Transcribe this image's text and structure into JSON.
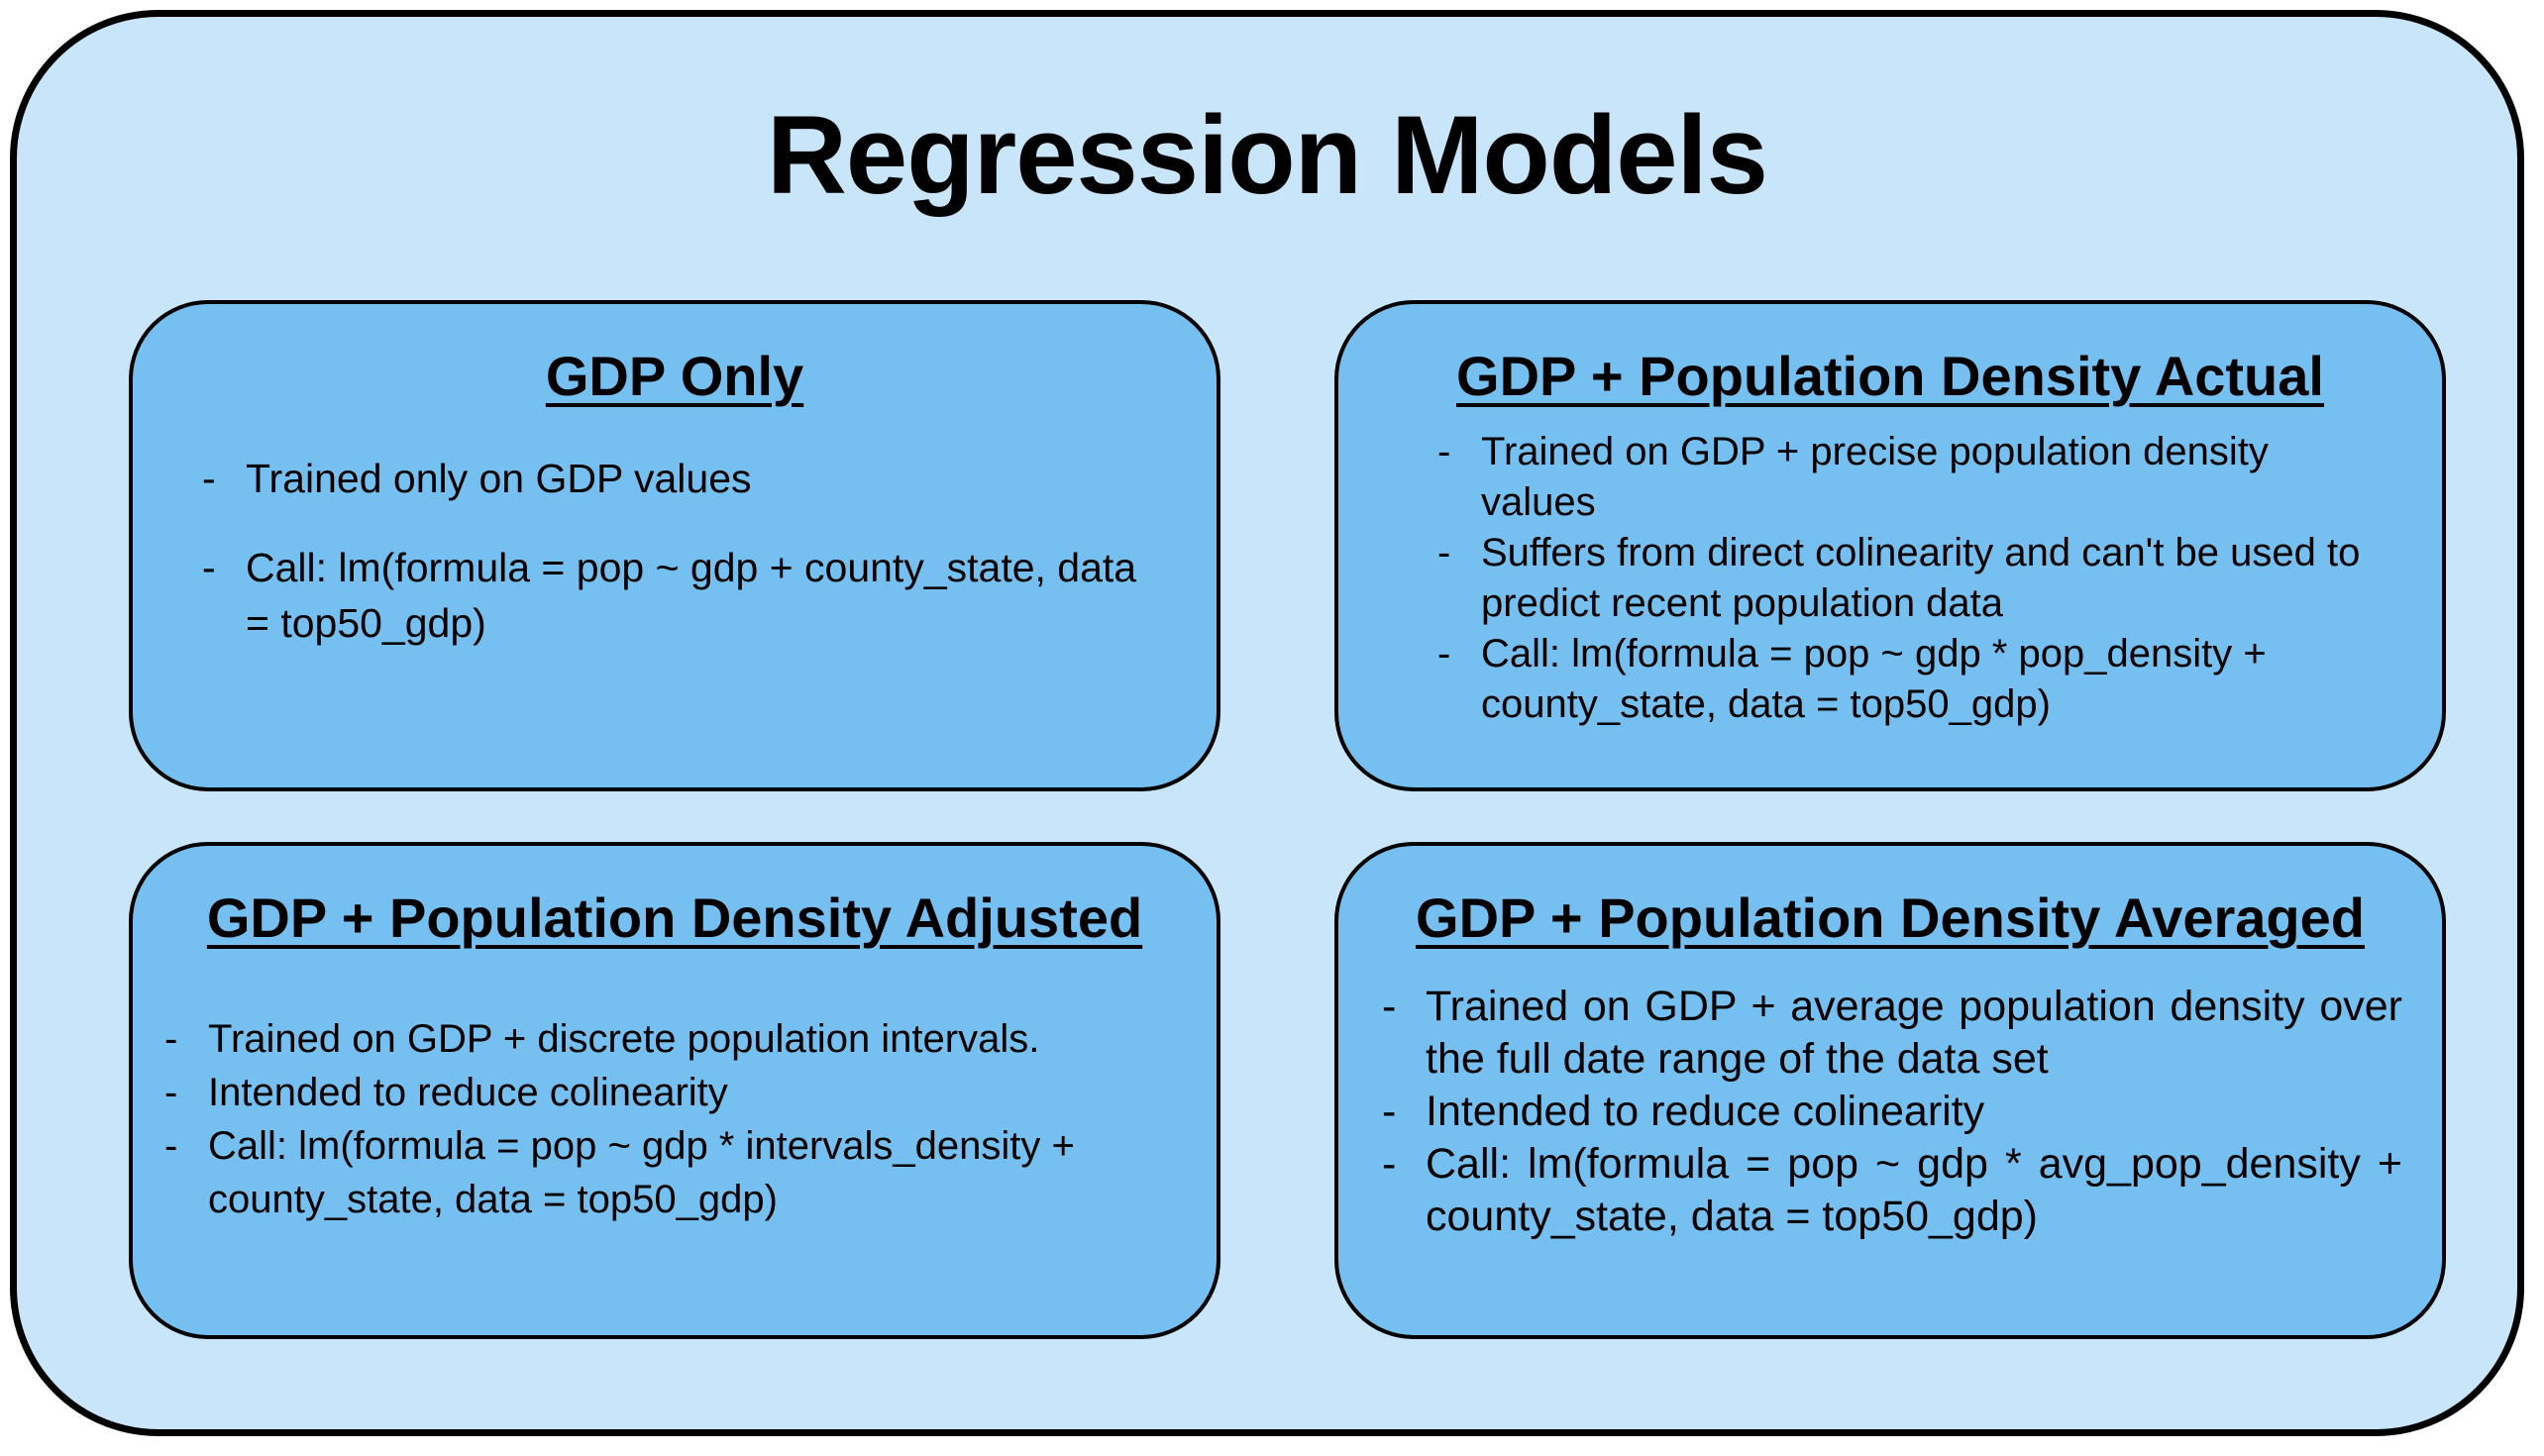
{
  "title": "Regression Models",
  "colors": {
    "outer_fill": "#c8e5fa",
    "card_fill": "#76c0f1",
    "border": "#000000"
  },
  "cards": [
    {
      "title": "GDP Only",
      "bullets": [
        "Trained only on GDP values",
        "Call: lm(formula = pop ~ gdp + county_state, data = top50_gdp)"
      ]
    },
    {
      "title": "GDP + Population Density Actual",
      "bullets": [
        "Trained on GDP + precise population density values",
        "Suffers from direct colinearity and can't be used to predict recent population data",
        "Call: lm(formula = pop ~ gdp * pop_density + county_state, data = top50_gdp)"
      ]
    },
    {
      "title": "GDP + Population Density Adjusted",
      "bullets": [
        "Trained on GDP + discrete population intervals.",
        "Intended to reduce colinearity",
        "Call: lm(formula = pop ~ gdp * intervals_density + county_state, data = top50_gdp)"
      ]
    },
    {
      "title": "GDP + Population Density Averaged",
      "bullets": [
        "Trained on GDP + average population density over the full date range of the data set",
        "Intended to reduce colinearity",
        "Call: lm(formula = pop ~ gdp * avg_pop_density + county_state, data = top50_gdp)"
      ]
    }
  ],
  "bullet_marker": "-"
}
